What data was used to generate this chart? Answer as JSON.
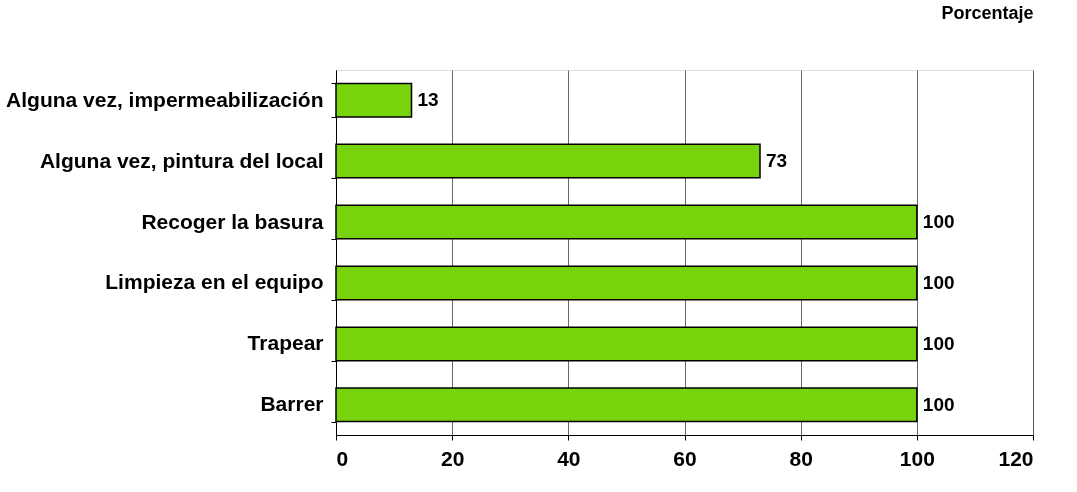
{
  "chart_data": {
    "type": "bar",
    "orientation": "horizontal",
    "xlabel": "Porcentaje",
    "categories": [
      "Alguna vez, impermeabilización",
      "Alguna vez, pintura del local",
      "Recoger la basura",
      "Limpieza en el equipo",
      "Trapear",
      "Barrer"
    ],
    "values": [
      13,
      73,
      100,
      100,
      100,
      100
    ],
    "color": "#77d40c",
    "xlim": [
      0,
      120
    ],
    "xticks": [
      0,
      20,
      40,
      60,
      80,
      100,
      120
    ],
    "grid": "x",
    "data_labels": true
  }
}
